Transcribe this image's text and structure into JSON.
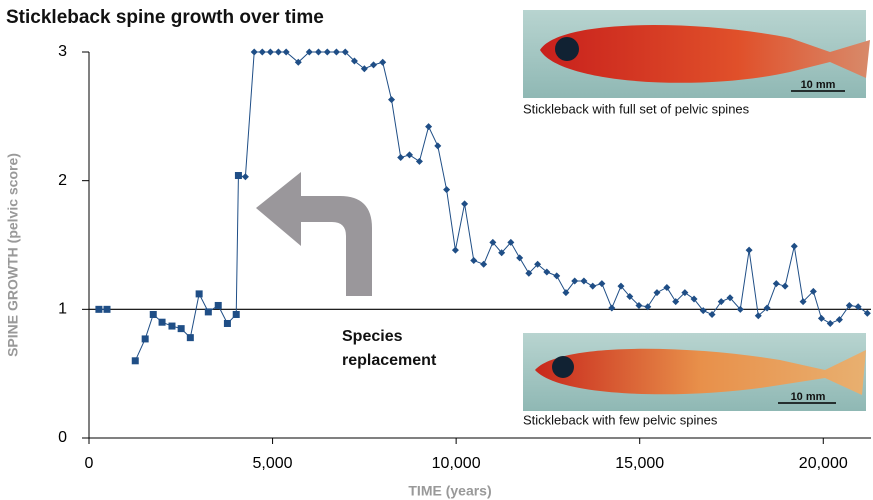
{
  "chart_data": {
    "type": "line",
    "title": "Stickleback spine growth over time",
    "x_label": "TIME (years)",
    "y_label": "SPINE GROWTH (pelvic score)",
    "xlim": [
      0,
      21300
    ],
    "ylim": [
      0,
      3
    ],
    "xticks": [
      0,
      {
        "value": 5000,
        "label": "5,000"
      },
      {
        "value": 10000,
        "label": "10,000"
      },
      {
        "value": 15000,
        "label": "15,000"
      },
      {
        "value": 20000,
        "label": "20,000"
      }
    ],
    "yticks": [
      0,
      1,
      2,
      3
    ],
    "reference_line": 1,
    "annotation": [
      "Species",
      "replacement"
    ],
    "images": [
      {
        "caption": "Stickleback with full set of pelvic spines",
        "scale": "10 mm"
      },
      {
        "caption": "Stickleback with few pelvic spines",
        "scale": "10 mm"
      }
    ],
    "series": [
      {
        "marker": "square",
        "color": "#1f4e86",
        "x": [
          270,
          490,
          900,
          1260,
          1530,
          1750,
          1990,
          2260,
          2510,
          2760,
          3000,
          3250,
          3520,
          3770,
          4010,
          4070
        ],
        "values": [
          1.0,
          1.0,
          null,
          0.6,
          0.77,
          0.96,
          0.9,
          0.87,
          0.85,
          0.78,
          1.12,
          0.98,
          1.03,
          0.89,
          0.96,
          2.04
        ]
      },
      {
        "marker": "diamond",
        "color": "#1f4e86",
        "x": [
          4260,
          4500,
          4720,
          4940,
          5160,
          5370,
          5700,
          6000,
          6250,
          6490,
          6740,
          6980,
          7230,
          7500,
          7750,
          8000,
          8240,
          8490,
          8730,
          9000,
          9250,
          9500,
          9740,
          9980,
          10230,
          10480,
          10750,
          11000,
          11240,
          11490,
          11730,
          11980,
          12220,
          12470,
          12740,
          12990,
          13230,
          13480,
          13720,
          13970,
          14240,
          14490,
          14730,
          14980,
          15220,
          15470,
          15740,
          15980,
          16230,
          16480,
          16730,
          16970,
          17220,
          17460,
          17740,
          17980,
          18230,
          18470,
          18720,
          18960,
          19210,
          19450,
          19730,
          19950,
          20190,
          20440,
          20710,
          20950,
          21200
        ],
        "values": [
          2.03,
          3.0,
          3.0,
          3.0,
          3.0,
          3.0,
          2.92,
          3.0,
          3.0,
          3.0,
          3.0,
          3.0,
          2.93,
          2.87,
          2.9,
          2.92,
          2.63,
          2.18,
          2.2,
          2.15,
          2.42,
          2.27,
          1.93,
          1.46,
          1.82,
          1.38,
          1.35,
          1.52,
          1.44,
          1.52,
          1.4,
          1.28,
          1.35,
          1.29,
          1.26,
          1.13,
          1.22,
          1.22,
          1.18,
          1.2,
          1.01,
          1.18,
          1.1,
          1.03,
          1.02,
          1.13,
          1.17,
          1.06,
          1.13,
          1.08,
          0.99,
          0.96,
          1.06,
          1.09,
          1.0,
          1.46,
          0.95,
          1.01,
          1.2,
          1.18,
          1.49,
          1.06,
          1.14,
          0.93,
          0.89,
          0.92,
          1.03,
          1.02,
          0.97
        ]
      }
    ]
  }
}
